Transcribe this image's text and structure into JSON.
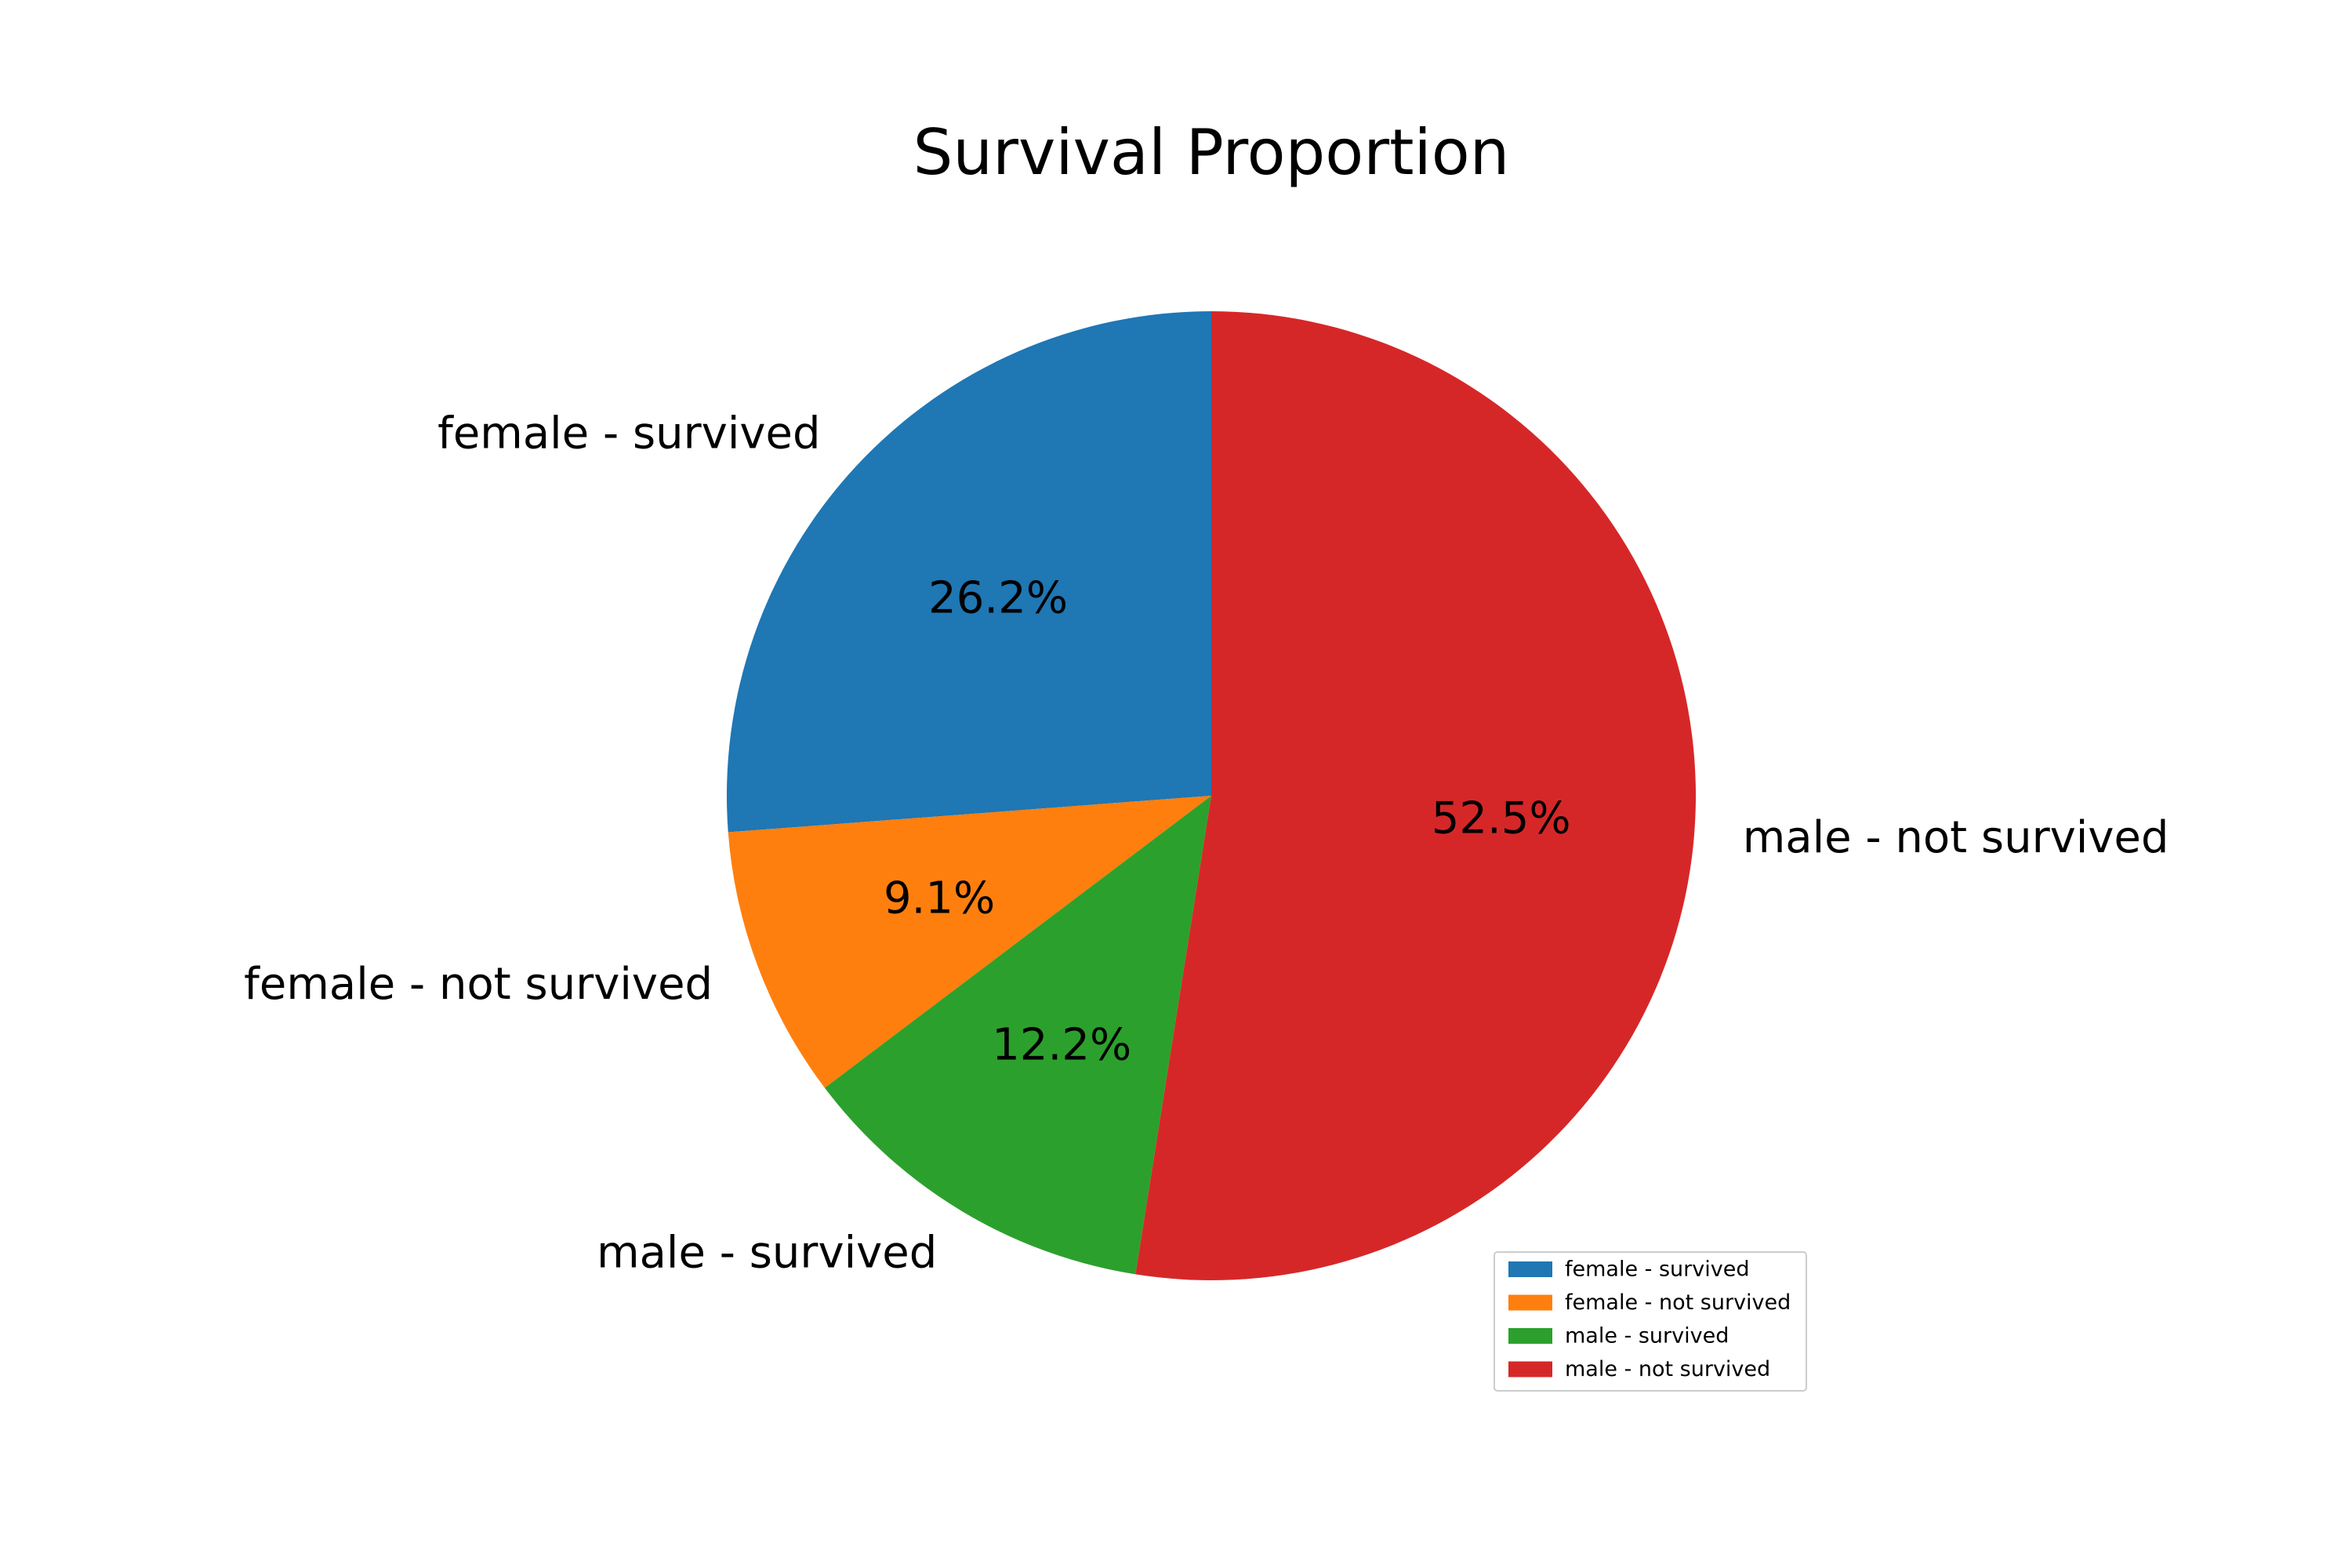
{
  "chart_data": {
    "type": "pie",
    "title": "Survival Proportion",
    "start_angle_deg": 90,
    "direction": "counterclockwise",
    "slices": [
      {
        "label": "female - survived",
        "value": 26.2,
        "pct_label": "26.2%",
        "color": "#1f77b4"
      },
      {
        "label": "female - not survived",
        "value": 9.1,
        "pct_label": "9.1%",
        "color": "#ff7f0e"
      },
      {
        "label": "male - survived",
        "value": 12.2,
        "pct_label": "12.2%",
        "color": "#2ca02c"
      },
      {
        "label": "male - not survived",
        "value": 52.5,
        "pct_label": "52.5%",
        "color": "#d62728"
      }
    ],
    "legend": {
      "placement": "lower-right",
      "entries": [
        "female - survived",
        "female - not survived",
        "male - survived",
        "male - not survived"
      ]
    }
  }
}
